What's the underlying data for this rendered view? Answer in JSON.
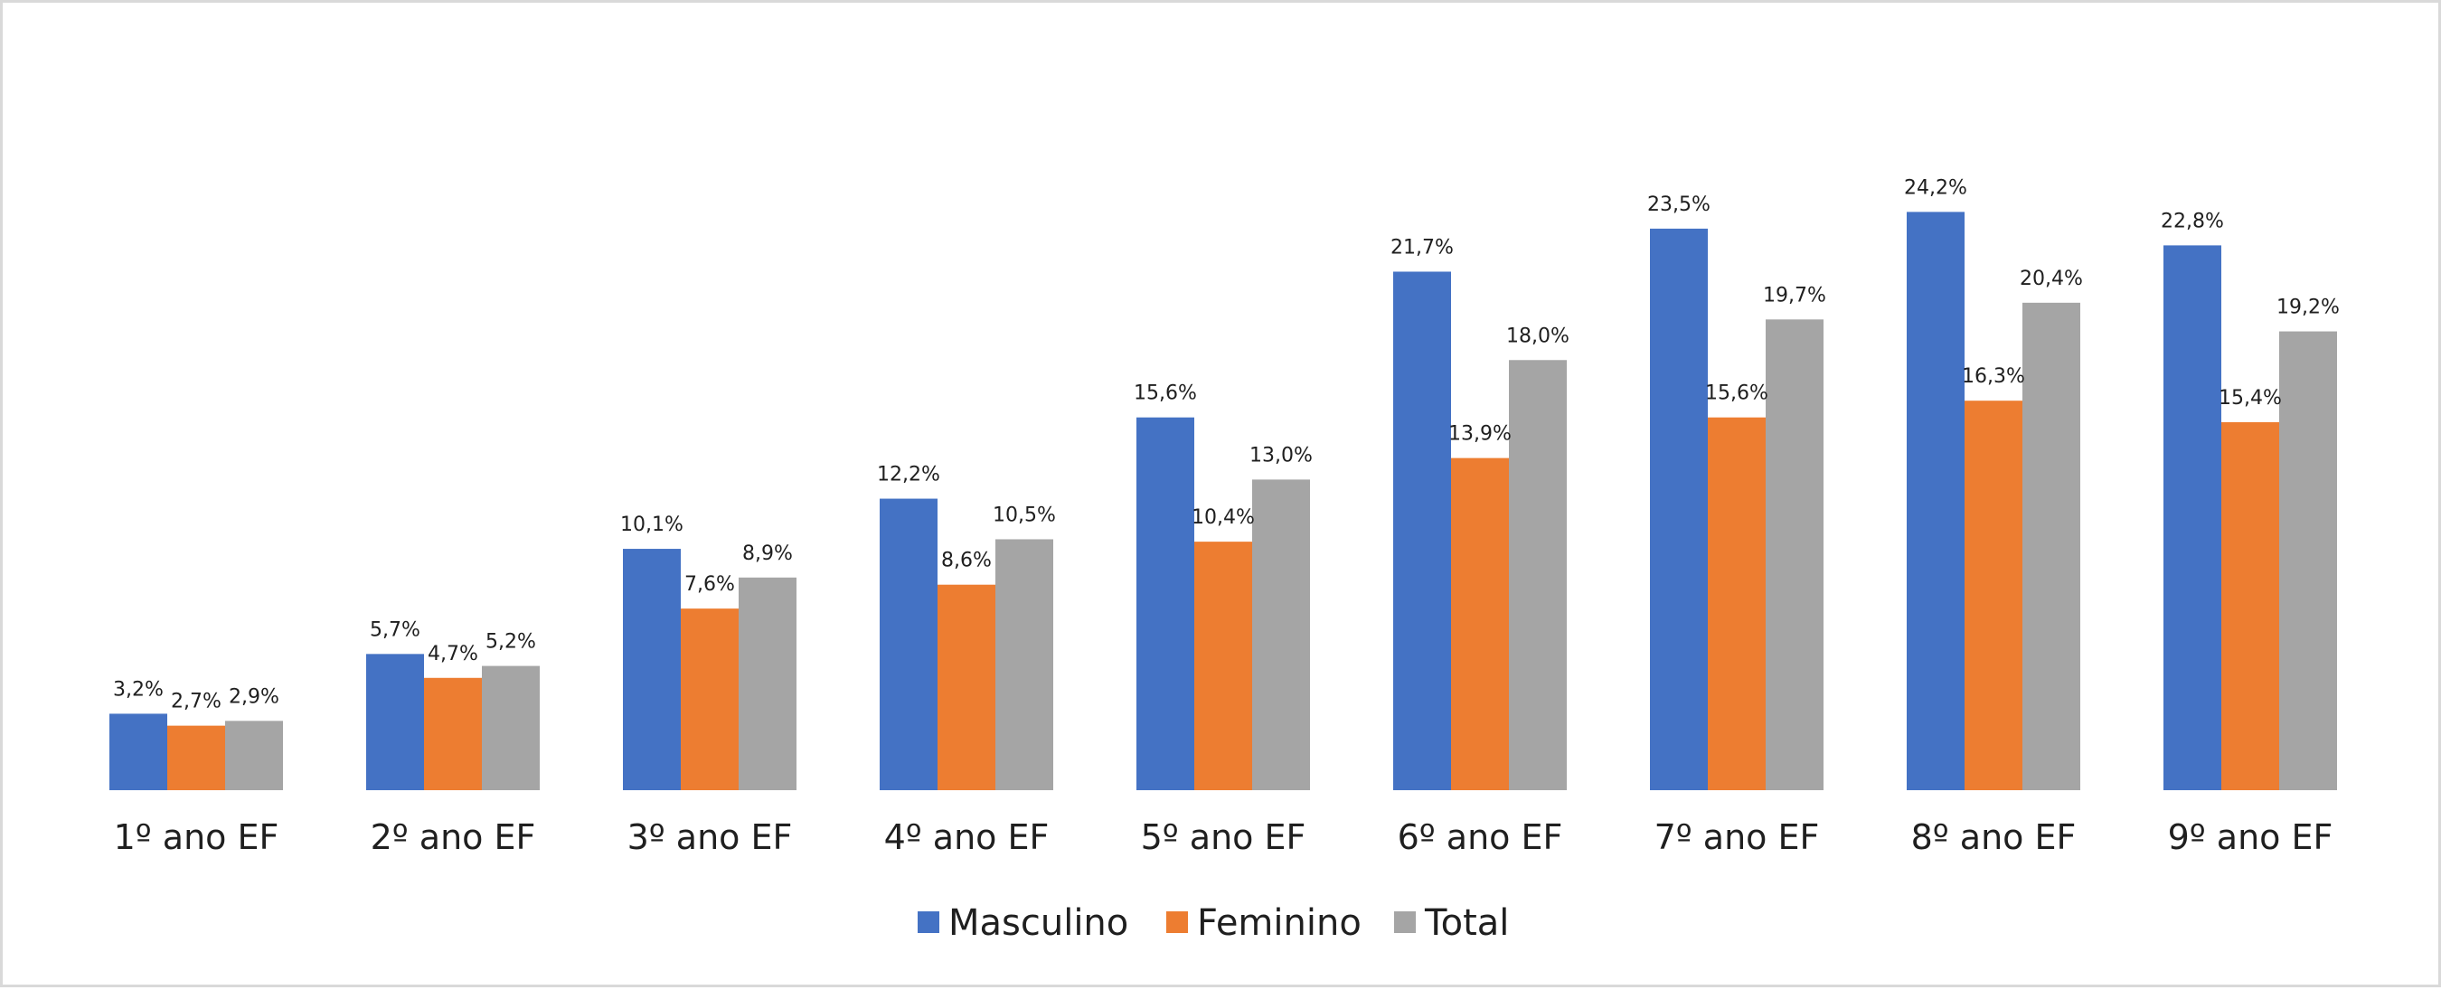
{
  "chart_data": {
    "type": "bar",
    "title": "",
    "xlabel": "",
    "ylabel": "",
    "ylim": [
      0,
      26
    ],
    "grid": false,
    "legend_position": "bottom",
    "categories": [
      "1º ano EF",
      "2º ano EF",
      "3º ano EF",
      "4º ano EF",
      "5º ano EF",
      "6º ano EF",
      "7º ano EF",
      "8º ano EF",
      "9º ano EF"
    ],
    "series": [
      {
        "name": "Masculino",
        "color": "#4472C4",
        "values": [
          3.2,
          5.7,
          10.1,
          12.2,
          15.6,
          21.7,
          23.5,
          24.2,
          22.8
        ],
        "labels": [
          "3,2%",
          "5,7%",
          "10,1%",
          "12,2%",
          "15,6%",
          "21,7%",
          "23,5%",
          "24,2%",
          "22,8%"
        ]
      },
      {
        "name": "Feminino",
        "color": "#ED7D31",
        "values": [
          2.7,
          4.7,
          7.6,
          8.6,
          10.4,
          13.9,
          15.6,
          16.3,
          15.4
        ],
        "labels": [
          "2,7%",
          "4,7%",
          "7,6%",
          "8,6%",
          "10,4%",
          "13,9%",
          "15,6%",
          "16,3%",
          "15,4%"
        ]
      },
      {
        "name": "Total",
        "color": "#A5A5A5",
        "values": [
          2.9,
          5.2,
          8.9,
          10.5,
          13.0,
          18.0,
          19.7,
          20.4,
          19.2
        ],
        "labels": [
          "2,9%",
          "5,2%",
          "8,9%",
          "10,5%",
          "13,0%",
          "18,0%",
          "19,7%",
          "20,4%",
          "19,2%"
        ]
      }
    ]
  }
}
